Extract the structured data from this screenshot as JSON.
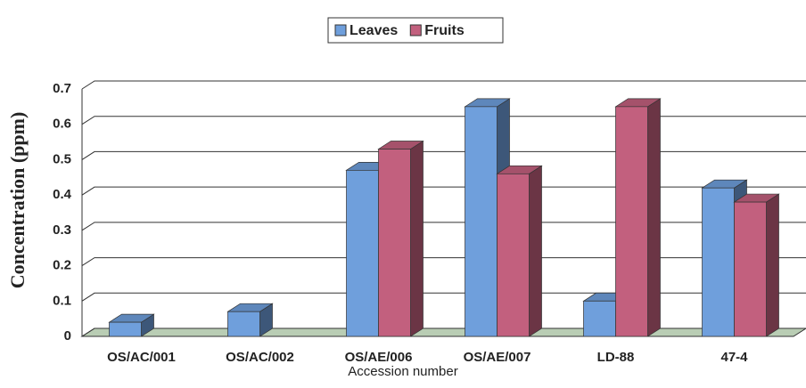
{
  "chart_data": {
    "type": "bar3d",
    "y_label": "Concentration (ppm)",
    "x_label": "Accession number",
    "categories": [
      "OS/AC/001",
      "OS/AC/002",
      "OS/AE/006",
      "OS/AE/007",
      "LD-88",
      "47-4"
    ],
    "series": [
      {
        "name": "Leaves",
        "color": "#6f9fdc",
        "values": [
          0.04,
          0.07,
          0.47,
          0.65,
          0.1,
          0.42
        ]
      },
      {
        "name": "Fruits",
        "color": "#c2607e",
        "values": [
          null,
          null,
          0.53,
          0.46,
          0.65,
          0.38
        ]
      }
    ],
    "ylim": [
      0,
      0.7
    ],
    "yticks": [
      0,
      0.1,
      0.2,
      0.3,
      0.4,
      0.5,
      0.6,
      0.7
    ],
    "grid": true
  }
}
